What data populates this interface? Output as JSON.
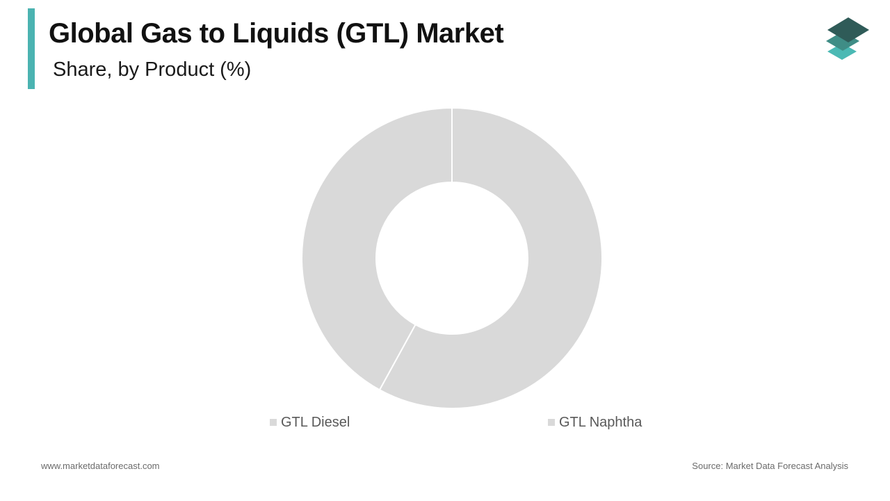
{
  "header": {
    "title": "Global Gas to Liquids (GTL) Market",
    "subtitle": "Share, by Product (%)"
  },
  "colors": {
    "accent": "#4bb3b1",
    "slice": "#d9d9d9",
    "slice_border": "#ffffff",
    "logo_top": "#2f5b58",
    "logo_middle": "#3f8d86",
    "logo_bottom": "#4bb9b4"
  },
  "logo": {
    "icon": "stacked-layers-icon"
  },
  "chart_data": {
    "type": "pie",
    "donut": true,
    "title": "",
    "categories": [
      "GTL Diesel",
      "GTL Naphtha"
    ],
    "values": [
      42,
      58
    ],
    "legend_position": "bottom"
  },
  "footer": {
    "website": "www.marketdataforecast.com",
    "source": "Source: Market Data Forecast Analysis"
  }
}
